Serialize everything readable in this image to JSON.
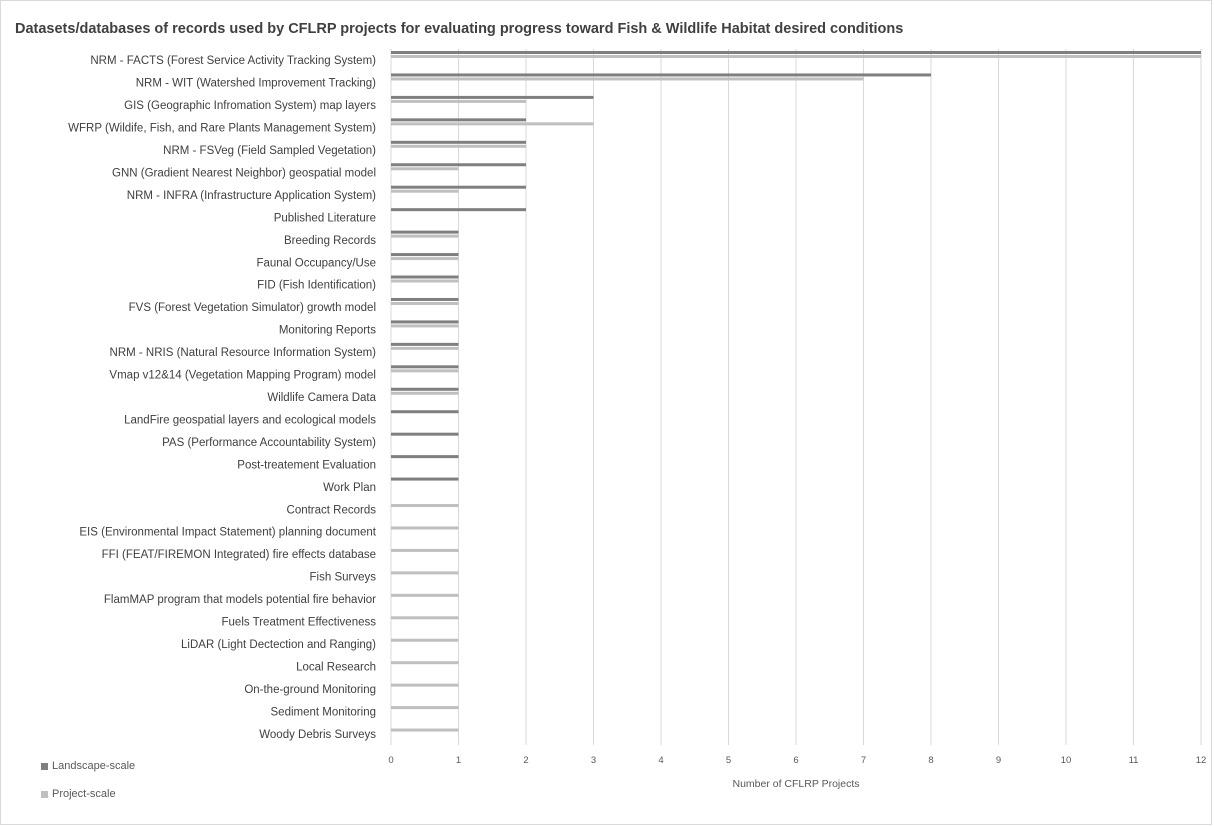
{
  "chart_data": {
    "type": "bar",
    "orientation": "horizontal",
    "title": "Datasets/databases of records used by CFLRP projects for evaluating progress toward Fish & Wildlife Habitat desired conditions",
    "xlabel": "Number of CFLRP Projects",
    "ylabel": "",
    "xlim": [
      0,
      12
    ],
    "xticks": [
      "0",
      "1",
      "2",
      "3",
      "4",
      "5",
      "6",
      "7",
      "8",
      "9",
      "10",
      "11",
      "12"
    ],
    "grid": true,
    "legend_position": "bottom-left",
    "categories": [
      "NRM - FACTS (Forest Service Activity Tracking System)",
      "NRM - WIT (Watershed Improvement Tracking)",
      "GIS (Geographic Infromation System) map layers",
      "WFRP (Wildife, Fish, and Rare Plants Management System)",
      "NRM - FSVeg (Field Sampled Vegetation)",
      "GNN (Gradient Nearest Neighbor) geospatial model",
      "NRM - INFRA (Infrastructure Application System)",
      "Published Literature",
      "Breeding Records",
      "Faunal Occupancy/Use",
      "FID (Fish Identification)",
      "FVS (Forest Vegetation Simulator) growth model",
      "Monitoring Reports",
      "NRM - NRIS (Natural Resource Information System)",
      "Vmap v12&14 (Vegetation Mapping Program) model",
      "Wildlife Camera Data",
      "LandFire geospatial layers and ecological models",
      "PAS (Performance Accountability System)",
      "Post-treatement Evaluation ",
      "Work Plan",
      "Contract Records",
      "EIS (Environmental Impact Statement) planning document",
      "FFI (FEAT/FIREMON Integrated) fire effects database",
      "Fish Surveys",
      "FlamMAP program that models potential fire behavior",
      "Fuels Treatment Effectiveness",
      "LiDAR (Light Dectection and Ranging)",
      "Local Research",
      "On-the-ground Monitoring",
      "Sediment Monitoring",
      "Woody Debris Surveys"
    ],
    "series": [
      {
        "name": "Landscape-scale",
        "color": "#7f7f7f",
        "values": [
          12,
          8,
          3,
          2,
          2,
          2,
          2,
          2,
          1,
          1,
          1,
          1,
          1,
          1,
          1,
          1,
          1,
          1,
          1,
          1,
          0,
          0,
          0,
          0,
          0,
          0,
          0,
          0,
          0,
          0,
          0
        ]
      },
      {
        "name": "Project-scale",
        "color": "#bfbfbf",
        "values": [
          12,
          7,
          2,
          3,
          2,
          1,
          1,
          0,
          1,
          1,
          1,
          1,
          1,
          1,
          1,
          1,
          0,
          0,
          0,
          0,
          1,
          1,
          1,
          1,
          1,
          1,
          1,
          1,
          1,
          1,
          1
        ]
      }
    ]
  }
}
